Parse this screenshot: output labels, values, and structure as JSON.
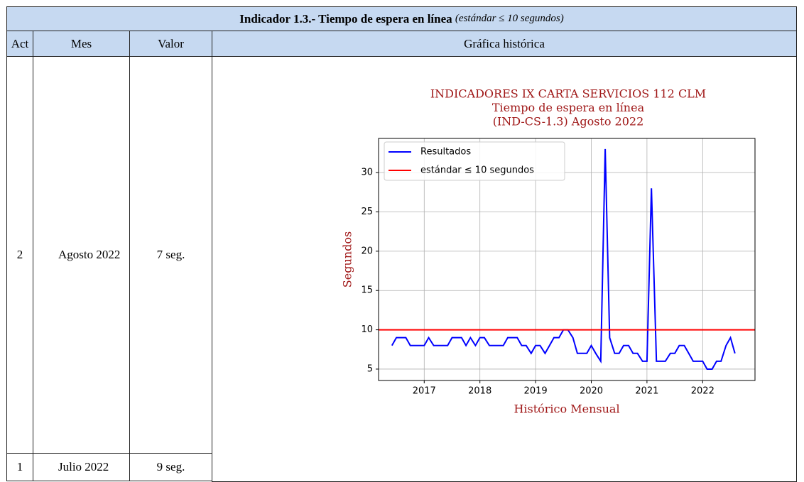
{
  "header": {
    "title": "Indicador 1.3.- Tiempo de espera en línea",
    "subtitle": "(estándar ≤ 10 segundos)"
  },
  "table": {
    "columns": [
      "Act",
      "Mes",
      "Valor",
      "Gráfica histórica"
    ],
    "rows": [
      [
        2,
        "Agosto 2022",
        "7 seg."
      ],
      [
        1,
        "Julio 2022",
        "9 seg."
      ]
    ]
  },
  "chart_data": {
    "type": "line",
    "title": [
      "INDICADORES IX CARTA SERVICIOS 112 CLM",
      "Tiempo de espera en línea",
      "(IND-CS-1.3) Agosto 2022"
    ],
    "xlabel": "Histórico Mensual",
    "ylabel": "Segundos",
    "x": [
      2016.42,
      2016.5,
      2016.58,
      2016.67,
      2016.75,
      2016.83,
      2016.92,
      2017.0,
      2017.08,
      2017.17,
      2017.25,
      2017.33,
      2017.42,
      2017.5,
      2017.58,
      2017.67,
      2017.75,
      2017.83,
      2017.92,
      2018.0,
      2018.08,
      2018.17,
      2018.25,
      2018.33,
      2018.42,
      2018.5,
      2018.58,
      2018.67,
      2018.75,
      2018.83,
      2018.92,
      2019.0,
      2019.08,
      2019.17,
      2019.25,
      2019.33,
      2019.42,
      2019.5,
      2019.58,
      2019.67,
      2019.75,
      2019.83,
      2019.92,
      2020.0,
      2020.08,
      2020.17,
      2020.25,
      2020.33,
      2020.42,
      2020.5,
      2020.58,
      2020.67,
      2020.75,
      2020.83,
      2020.92,
      2021.0,
      2021.08,
      2021.17,
      2021.25,
      2021.33,
      2021.42,
      2021.5,
      2021.58,
      2021.67,
      2021.75,
      2021.83,
      2021.92,
      2022.0,
      2022.08,
      2022.17,
      2022.25,
      2022.33,
      2022.42,
      2022.5,
      2022.58
    ],
    "series": [
      {
        "name": "Resultados",
        "color": "#0000ff",
        "values": [
          8,
          9,
          9,
          9,
          8,
          8,
          8,
          8,
          9,
          8,
          8,
          8,
          8,
          9,
          9,
          9,
          8,
          9,
          8,
          9,
          9,
          8,
          8,
          8,
          8,
          9,
          9,
          9,
          8,
          8,
          7,
          8,
          8,
          7,
          8,
          9,
          9,
          10,
          10,
          9,
          7,
          7,
          7,
          8,
          7,
          6,
          33,
          9,
          7,
          7,
          8,
          8,
          7,
          7,
          6,
          6,
          28,
          6,
          6,
          6,
          7,
          7,
          8,
          8,
          7,
          6,
          6,
          6,
          5,
          5,
          6,
          6,
          8,
          9,
          7
        ]
      }
    ],
    "reference_line": {
      "name": "estándar ≤ 10 segundos",
      "color": "#ff0000",
      "value": 10
    },
    "xlim": [
      2016.18,
      2022.94
    ],
    "xticks": [
      2017,
      2018,
      2019,
      2020,
      2021,
      2022
    ],
    "ylim": [
      3.55,
      34.35
    ],
    "yticks": [
      5,
      10,
      15,
      20,
      25,
      30
    ],
    "grid": true,
    "legend": "upper left"
  }
}
